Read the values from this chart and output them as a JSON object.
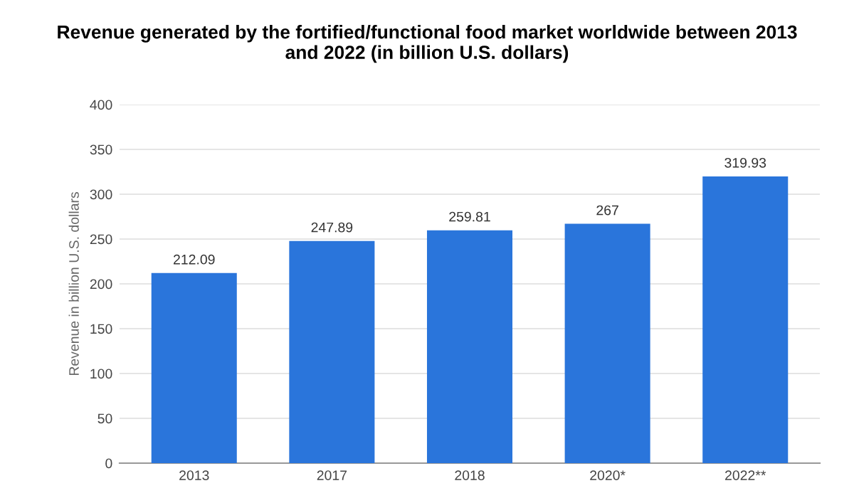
{
  "chart_data": {
    "type": "bar",
    "title": "Revenue generated by the fortified/functional food market worldwide between 2013\nand 2022 (in billion U.S. dollars)",
    "ylabel": "Revenue in billion U.S. dollars",
    "categories": [
      "2013",
      "2017",
      "2018",
      "2020*",
      "2022**"
    ],
    "values": [
      212.09,
      247.89,
      259.81,
      267,
      319.93
    ],
    "color": "#2a75db",
    "ylim": [
      0,
      400
    ],
    "yticks": [
      0,
      50,
      100,
      150,
      200,
      250,
      300,
      350,
      400
    ],
    "grid": "y",
    "data_labels": true,
    "legend": false
  }
}
